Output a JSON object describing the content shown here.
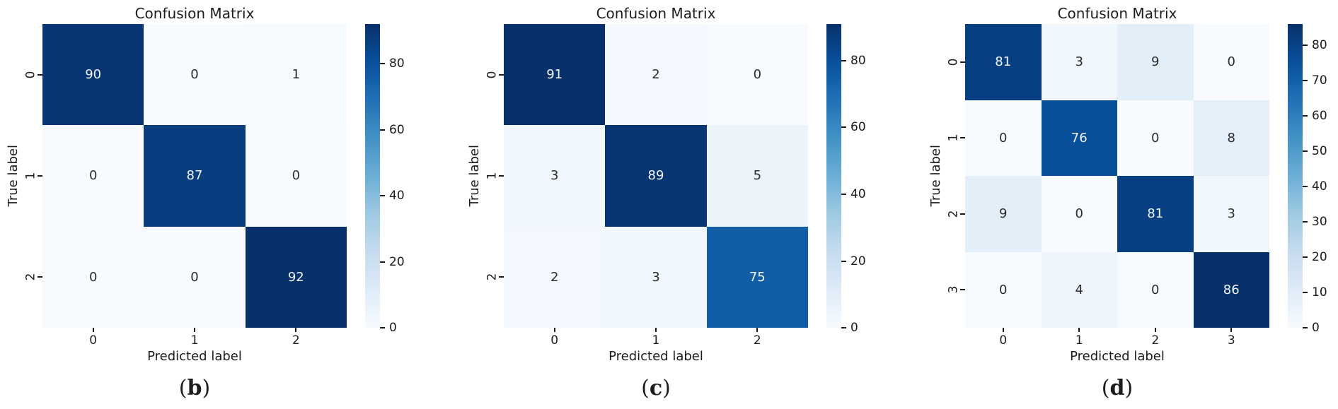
{
  "chart_data": [
    {
      "type": "heatmap",
      "panel_id": "b",
      "caption": "(b)",
      "caption_letter": "b",
      "title": "Confusion Matrix",
      "xlabel": "Predicted label",
      "ylabel": "True label",
      "x_tick_labels": [
        "0",
        "1",
        "2"
      ],
      "y_tick_labels": [
        "0",
        "1",
        "2"
      ],
      "matrix": [
        [
          90,
          0,
          1
        ],
        [
          0,
          87,
          0
        ],
        [
          0,
          0,
          92
        ]
      ],
      "vmin": 0,
      "vmax": 92,
      "colorbar_ticks": [
        0,
        20,
        40,
        60,
        80
      ],
      "colormap": "Blues",
      "colorbar_position": "right",
      "grid": "off"
    },
    {
      "type": "heatmap",
      "panel_id": "c",
      "caption": "(c)",
      "caption_letter": "c",
      "title": "Confusion Matrix",
      "xlabel": "Predicted label",
      "ylabel": "True label",
      "x_tick_labels": [
        "0",
        "1",
        "2"
      ],
      "y_tick_labels": [
        "0",
        "1",
        "2"
      ],
      "matrix": [
        [
          91,
          2,
          0
        ],
        [
          3,
          89,
          5
        ],
        [
          2,
          3,
          75
        ]
      ],
      "vmin": 0,
      "vmax": 91,
      "colorbar_ticks": [
        0,
        20,
        40,
        60,
        80
      ],
      "colormap": "Blues",
      "colorbar_position": "right",
      "grid": "off"
    },
    {
      "type": "heatmap",
      "panel_id": "d",
      "caption": "(d)",
      "caption_letter": "d",
      "title": "Confusion Matrix",
      "xlabel": "Predicted label",
      "ylabel": "True label",
      "x_tick_labels": [
        "0",
        "1",
        "2",
        "3"
      ],
      "y_tick_labels": [
        "0",
        "1",
        "2",
        "3"
      ],
      "matrix": [
        [
          81,
          3,
          9,
          0
        ],
        [
          0,
          76,
          0,
          8
        ],
        [
          9,
          0,
          81,
          3
        ],
        [
          0,
          4,
          0,
          86
        ]
      ],
      "vmin": 0,
      "vmax": 86,
      "colorbar_ticks": [
        0,
        10,
        20,
        30,
        40,
        50,
        60,
        70,
        80
      ],
      "colormap": "Blues",
      "colorbar_position": "right",
      "grid": "off"
    }
  ],
  "colors": {
    "colormap_low": "#f7fbff",
    "colormap_high": "#08306b",
    "annot_light": "#f2f6fd",
    "annot_dark": "#2b2b2b",
    "axis_text": "#1c1c1c",
    "background": "#ffffff"
  }
}
